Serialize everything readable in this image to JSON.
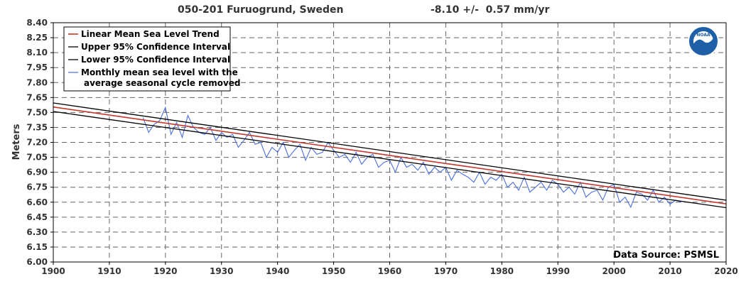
{
  "header": {
    "station": "050-201 Furuogrund, Sweden",
    "trend": "-8.10 +/-  0.57 mm/yr"
  },
  "chart_data": {
    "type": "line",
    "title": "050-201 Furuogrund, Sweden",
    "subtitle": "-8.10 +/-  0.57 mm/yr",
    "ylabel": "Meters",
    "xlabel": "",
    "xlim": [
      1900,
      2020
    ],
    "ylim": [
      6.0,
      8.4
    ],
    "x_ticks": [
      "1900",
      "1910",
      "1920",
      "1930",
      "1940",
      "1950",
      "1960",
      "1970",
      "1980",
      "1990",
      "2000",
      "2010",
      "2020"
    ],
    "y_ticks": [
      "6.00",
      "6.15",
      "6.30",
      "6.45",
      "6.60",
      "6.75",
      "6.90",
      "7.05",
      "7.20",
      "7.35",
      "7.50",
      "7.65",
      "7.80",
      "7.95",
      "8.10",
      "8.25",
      "8.40"
    ],
    "grid": true,
    "legend_position": "top-left",
    "legend": [
      {
        "label": "Linear Mean Sea Level Trend",
        "color": "#c0392b"
      },
      {
        "label": "Upper 95% Confidence Interval",
        "color": "#000000"
      },
      {
        "label": "Lower 95% Confidence Interval",
        "color": "#000000"
      },
      {
        "label": "Monthly mean sea level with the",
        "label2": "average seasonal cycle removed",
        "color": "#4a6fdc"
      }
    ],
    "series": [
      {
        "name": "Linear Mean Sea Level Trend",
        "x": [
          1900,
          2020
        ],
        "y": [
          7.555,
          6.583
        ],
        "color": "#c0392b"
      },
      {
        "name": "Upper 95% Confidence Interval",
        "x": [
          1900,
          2020
        ],
        "y": [
          7.595,
          6.62
        ],
        "color": "#000000"
      },
      {
        "name": "Lower 95% Confidence Interval",
        "x": [
          1900,
          2020
        ],
        "y": [
          7.51,
          6.545
        ],
        "color": "#000000"
      },
      {
        "name": "Monthly mean sea level with the average seasonal cycle removed",
        "x": [
          1916,
          1917,
          1918,
          1919,
          1920,
          1921,
          1922,
          1923,
          1924,
          1925,
          1926,
          1927,
          1928,
          1929,
          1930,
          1931,
          1932,
          1933,
          1934,
          1935,
          1936,
          1937,
          1938,
          1939,
          1940,
          1941,
          1942,
          1943,
          1944,
          1945,
          1946,
          1947,
          1948,
          1949,
          1950,
          1951,
          1952,
          1953,
          1954,
          1955,
          1956,
          1957,
          1958,
          1959,
          1960,
          1961,
          1962,
          1963,
          1964,
          1965,
          1966,
          1967,
          1968,
          1969,
          1970,
          1971,
          1972,
          1973,
          1974,
          1975,
          1976,
          1977,
          1978,
          1979,
          1980,
          1981,
          1982,
          1983,
          1984,
          1985,
          1986,
          1987,
          1988,
          1989,
          1990,
          1991,
          1992,
          1993,
          1994,
          1995,
          1996,
          1997,
          1998,
          1999,
          2000,
          2001,
          2002,
          2003,
          2004,
          2005,
          2006,
          2007,
          2008,
          2009,
          2010,
          2011,
          2012
        ],
        "y": [
          7.45,
          7.3,
          7.38,
          7.42,
          7.55,
          7.28,
          7.4,
          7.25,
          7.47,
          7.35,
          7.3,
          7.28,
          7.35,
          7.22,
          7.3,
          7.25,
          7.28,
          7.15,
          7.22,
          7.3,
          7.18,
          7.2,
          7.05,
          7.15,
          7.1,
          7.2,
          7.05,
          7.12,
          7.18,
          7.02,
          7.15,
          7.08,
          7.1,
          7.2,
          7.12,
          7.05,
          7.08,
          7.0,
          7.1,
          6.98,
          7.05,
          7.08,
          6.95,
          7.0,
          7.02,
          6.9,
          7.05,
          6.95,
          6.98,
          6.92,
          7.0,
          6.88,
          6.95,
          6.9,
          6.95,
          6.82,
          6.92,
          6.88,
          6.85,
          6.8,
          6.9,
          6.78,
          6.85,
          6.82,
          6.88,
          6.75,
          6.8,
          6.72,
          6.85,
          6.7,
          6.75,
          6.8,
          6.72,
          6.82,
          6.78,
          6.7,
          6.75,
          6.68,
          6.8,
          6.65,
          6.7,
          6.72,
          6.62,
          6.75,
          6.78,
          6.6,
          6.65,
          6.55,
          6.7,
          6.68,
          6.62,
          6.72,
          6.6,
          6.65,
          6.58,
          6.62,
          6.6
        ],
        "color": "#4a6fdc"
      }
    ],
    "annotation": "Data Source: PSMSL"
  }
}
